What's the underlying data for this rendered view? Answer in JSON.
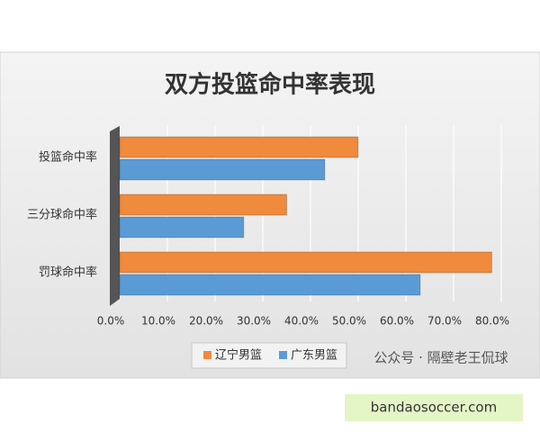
{
  "chart_data": {
    "type": "hbar",
    "title": "双方投篮命中率表现",
    "categories": [
      "投篮命中率",
      "三分球命中率",
      "罚球命中率"
    ],
    "series": [
      {
        "name": "辽宁男篮",
        "color": "#f08a3c",
        "values": [
          50,
          35,
          78
        ]
      },
      {
        "name": "广东男篮",
        "color": "#5b9bd5",
        "values": [
          43,
          26,
          63
        ]
      }
    ],
    "xlim": [
      0,
      80
    ],
    "xticks": [
      {
        "value": 0,
        "label": "0.0%"
      },
      {
        "value": 10,
        "label": "10.0%"
      },
      {
        "value": 20,
        "label": "20.0%"
      },
      {
        "value": 30,
        "label": "30.0%"
      },
      {
        "value": 40,
        "label": "40.0%"
      },
      {
        "value": 50,
        "label": "50.0%"
      },
      {
        "value": 60,
        "label": "60.0%"
      },
      {
        "value": 70,
        "label": "70.0%"
      },
      {
        "value": 80,
        "label": "80.0%"
      }
    ],
    "grid": true,
    "legend": "bottom",
    "watermark": "公众号 · 隔壁老王侃球",
    "source": "bandaosoccer.com"
  }
}
